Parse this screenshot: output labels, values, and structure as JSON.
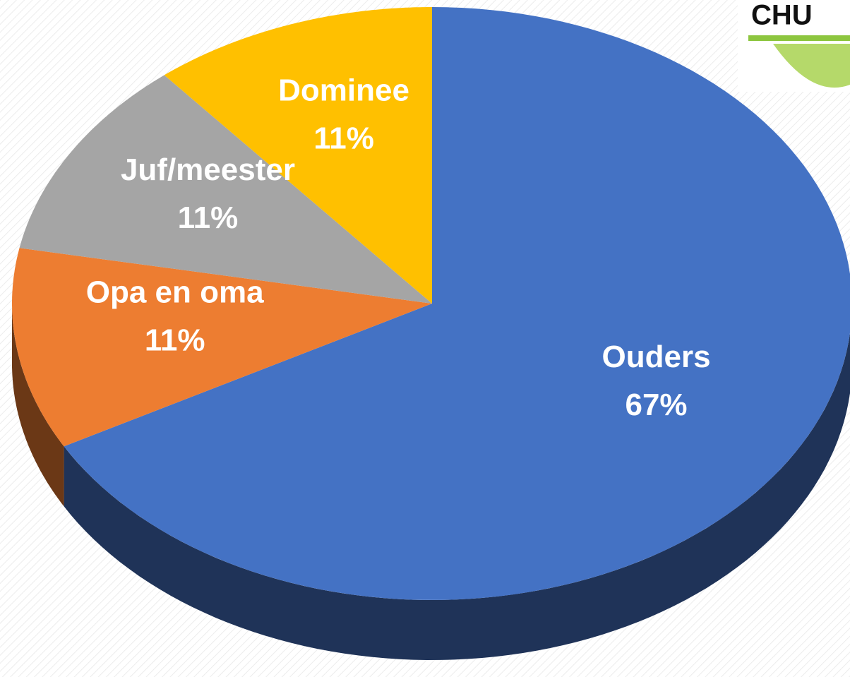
{
  "chart_data": {
    "type": "pie",
    "categories": [
      "Ouders",
      "Opa en oma",
      "Juf/meester",
      "Dominee"
    ],
    "values": [
      67,
      11,
      11,
      11
    ],
    "value_labels": [
      "67%",
      "11%",
      "11%",
      "11%"
    ],
    "colors": [
      "#4472c4",
      "#ed7d31",
      "#a5a5a5",
      "#ffc000"
    ]
  },
  "logo": {
    "text": "CHU"
  }
}
